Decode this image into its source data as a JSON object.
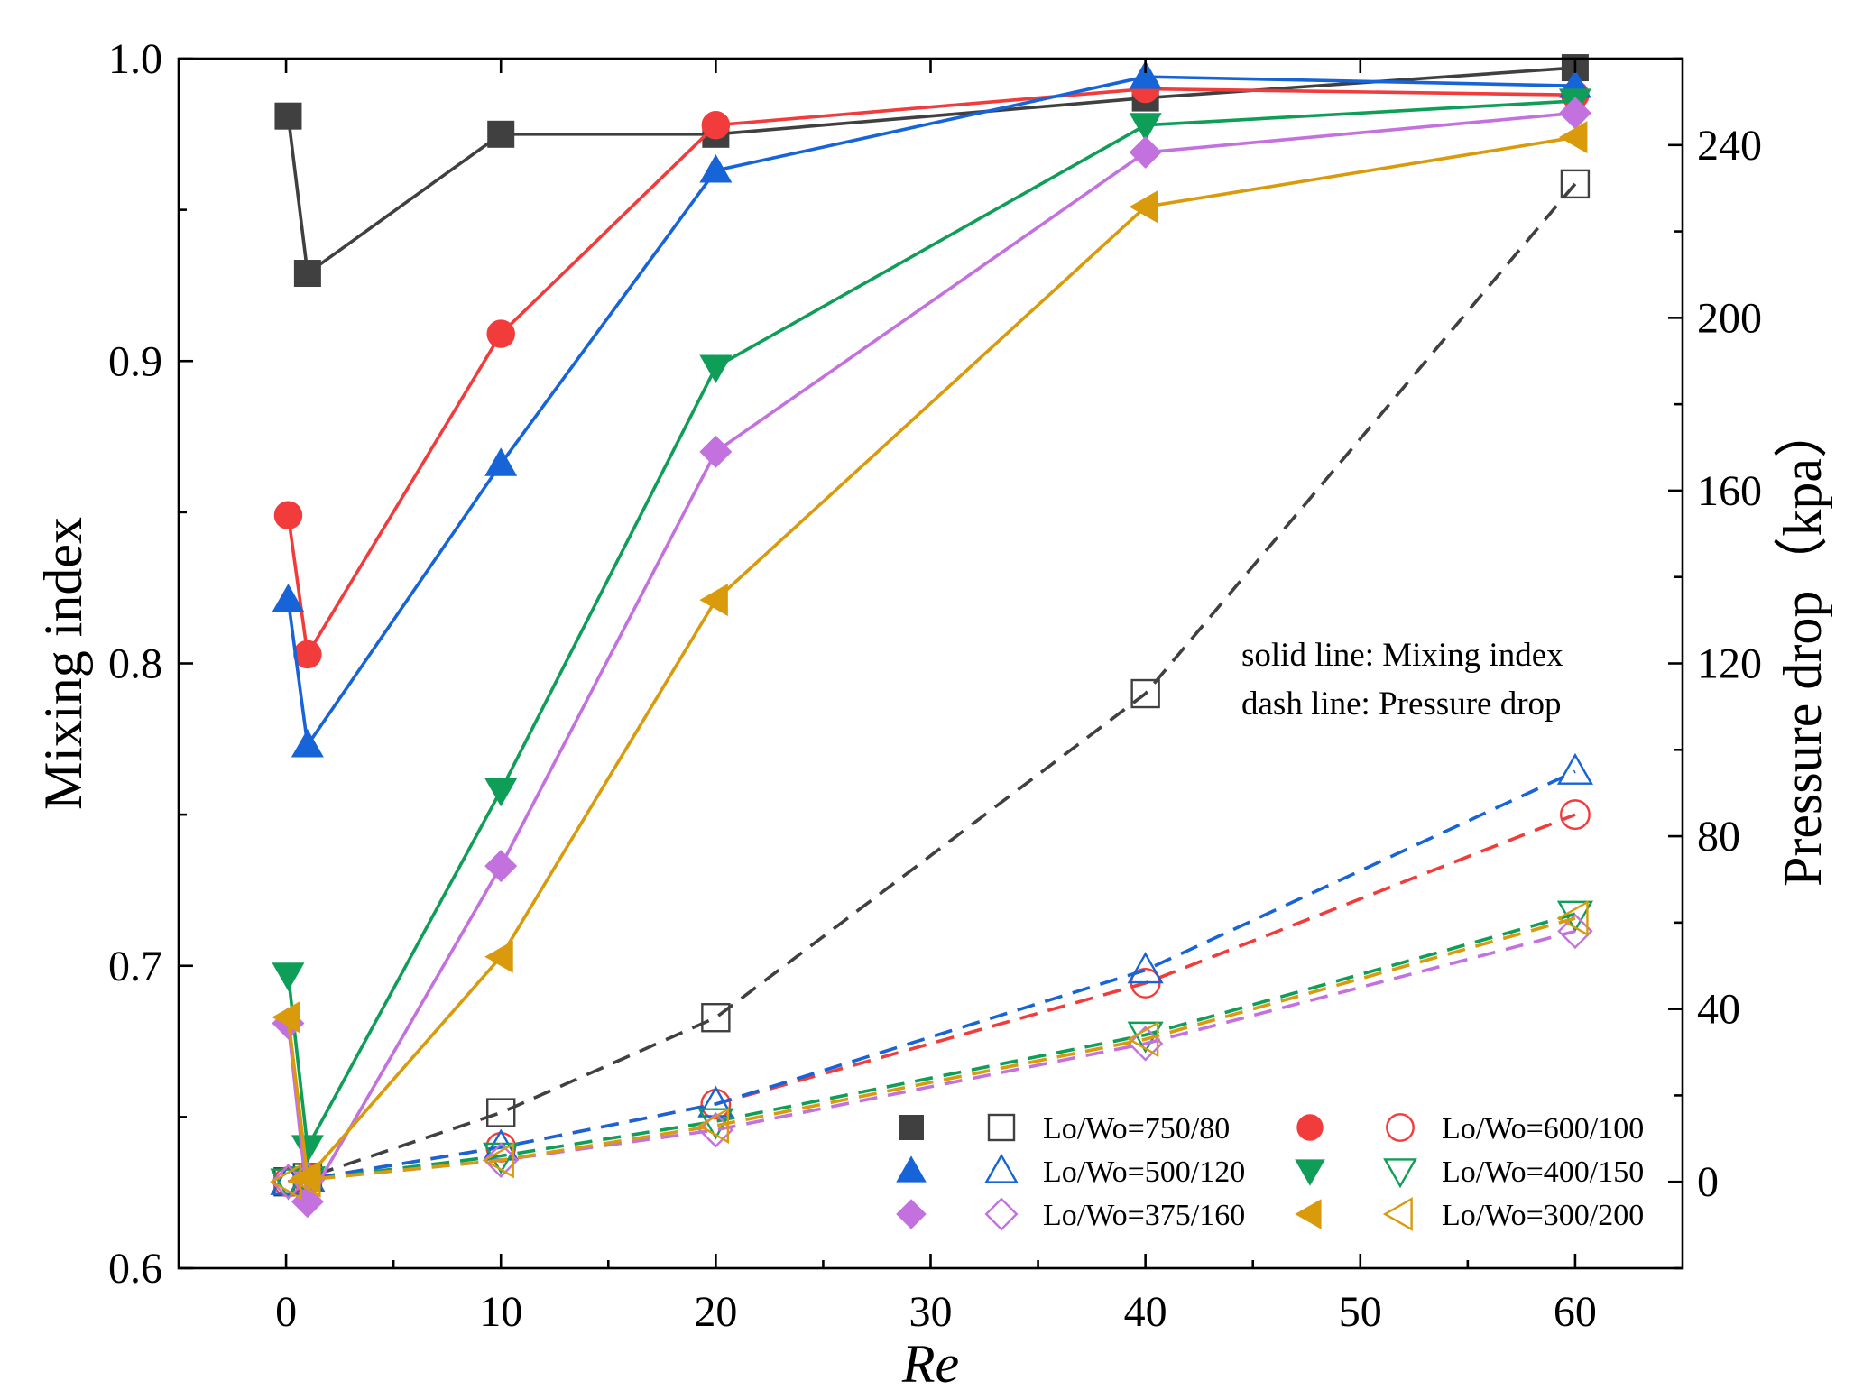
{
  "chart_data": {
    "type": "line",
    "title": "",
    "xlabel": "Re",
    "ylabel": "Mixing index",
    "y2label": "Pressure drop（kpa）",
    "xlim": [
      -5,
      65
    ],
    "ylim": [
      0.6,
      1.0
    ],
    "y2lim": [
      -20,
      260
    ],
    "xticks": [
      0,
      10,
      20,
      30,
      40,
      50,
      60
    ],
    "xtick_labels": [
      "0",
      "10",
      "20",
      "30",
      "40",
      "50",
      "60"
    ],
    "yticks": [
      0.6,
      0.7,
      0.8,
      0.9,
      1.0
    ],
    "ytick_labels": [
      "0.6",
      "0.7",
      "0.8",
      "0.9",
      "1.0"
    ],
    "y2ticks": [
      0,
      40,
      80,
      120,
      160,
      200,
      240
    ],
    "y2tick_labels": [
      "0",
      "40",
      "80",
      "120",
      "160",
      "200",
      "240"
    ],
    "grid": false,
    "annotations": [
      "solid line: Mixing index",
      "dash line: Pressure drop"
    ],
    "legend_position": "bottom-right",
    "series": [
      {
        "name": "Lo/Wo=750/80",
        "color": "#404040",
        "marker": "square",
        "mixing_x": [
          0.1,
          1,
          10,
          20,
          40,
          60
        ],
        "mixing_index": [
          0.981,
          0.929,
          0.975,
          0.975,
          0.987,
          0.997
        ],
        "pressure_x": [
          0.1,
          0.5,
          1,
          10,
          20,
          40,
          60
        ],
        "pressure_drop": [
          0,
          0.5,
          1,
          16,
          38,
          113,
          231
        ]
      },
      {
        "name": "Lo/Wo=600/100",
        "color": "#f23b3b",
        "marker": "circle",
        "mixing_x": [
          0.1,
          1,
          10,
          20,
          40,
          60
        ],
        "mixing_index": [
          0.849,
          0.803,
          0.909,
          0.978,
          0.99,
          0.988
        ],
        "pressure_x": [
          0.1,
          0.5,
          1,
          10,
          20,
          40,
          60
        ],
        "pressure_drop": [
          0,
          0.3,
          0.6,
          8,
          18,
          46,
          85
        ]
      },
      {
        "name": "Lo/Wo=500/120",
        "color": "#1764d8",
        "marker": "triangle-up",
        "mixing_x": [
          0.1,
          1,
          10,
          20,
          40,
          60
        ],
        "mixing_index": [
          0.821,
          0.773,
          0.866,
          0.963,
          0.994,
          0.991
        ],
        "pressure_x": [
          0.1,
          0.5,
          1,
          10,
          20,
          40,
          60
        ],
        "pressure_drop": [
          0,
          0.3,
          0.6,
          8,
          18,
          49,
          95
        ]
      },
      {
        "name": "Lo/Wo=400/150",
        "color": "#0f9e58",
        "marker": "triangle-down",
        "mixing_x": [
          0.1,
          1,
          10,
          20,
          40,
          60
        ],
        "mixing_index": [
          0.697,
          0.64,
          0.758,
          0.898,
          0.978,
          0.986
        ],
        "pressure_x": [
          0.1,
          0.5,
          1,
          10,
          20,
          40,
          60
        ],
        "pressure_drop": [
          0,
          0.2,
          0.5,
          6,
          14,
          34,
          62
        ]
      },
      {
        "name": "Lo/Wo=375/160",
        "color": "#c471e0",
        "marker": "diamond",
        "mixing_x": [
          0.1,
          1,
          10,
          20,
          40,
          60
        ],
        "mixing_index": [
          0.681,
          0.622,
          0.733,
          0.87,
          0.969,
          0.982
        ],
        "pressure_x": [
          0.1,
          0.5,
          1,
          10,
          20,
          40,
          60
        ],
        "pressure_drop": [
          0,
          0.2,
          0.5,
          5,
          12,
          32,
          58
        ]
      },
      {
        "name": "Lo/Wo=300/200",
        "color": "#d99a0b",
        "marker": "triangle-left",
        "mixing_x": [
          0.1,
          1,
          10,
          20,
          40,
          60
        ],
        "mixing_index": [
          0.683,
          0.63,
          0.703,
          0.821,
          0.951,
          0.974
        ],
        "pressure_x": [
          0.1,
          0.5,
          1,
          10,
          20,
          40,
          60
        ],
        "pressure_drop": [
          0,
          0.2,
          0.5,
          5,
          13,
          33,
          61
        ]
      }
    ]
  }
}
